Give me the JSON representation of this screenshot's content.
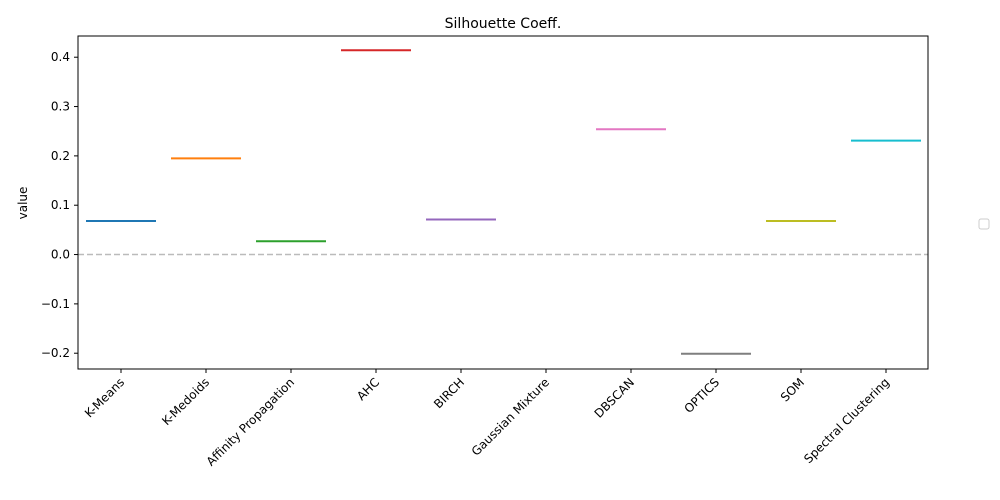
{
  "chart_data": {
    "type": "line",
    "title": "Silhouette Coeff.",
    "xlabel": "",
    "ylabel": "value",
    "categories": [
      "K-Means",
      "K-Medoids",
      "Affinity Propagation",
      "AHC",
      "BIRCH",
      "Gaussian Mixture",
      "DBSCAN",
      "OPTICS",
      "SOM",
      "Spectral Clustering"
    ],
    "values": [
      0.068,
      0.195,
      0.027,
      0.414,
      0.071,
      null,
      0.254,
      -0.201,
      0.068,
      0.231
    ],
    "colors": [
      "#1f77b4",
      "#ff7f0e",
      "#2ca02c",
      "#d62728",
      "#9467bd",
      "#8c564b",
      "#e377c2",
      "#7f7f7f",
      "#bcbd22",
      "#17becf"
    ],
    "ylim": [
      -0.232,
      0.443
    ],
    "yticks": [
      "−0.2",
      "−0.1",
      "0.0",
      "0.1",
      "0.2",
      "0.3",
      "0.4"
    ],
    "ytick_values": [
      -0.2,
      -0.1,
      0.0,
      0.1,
      0.2,
      0.3,
      0.4
    ],
    "reference_line": 0.0,
    "reference_color": "#bbbbbb",
    "legend": "empty, right of plot"
  }
}
